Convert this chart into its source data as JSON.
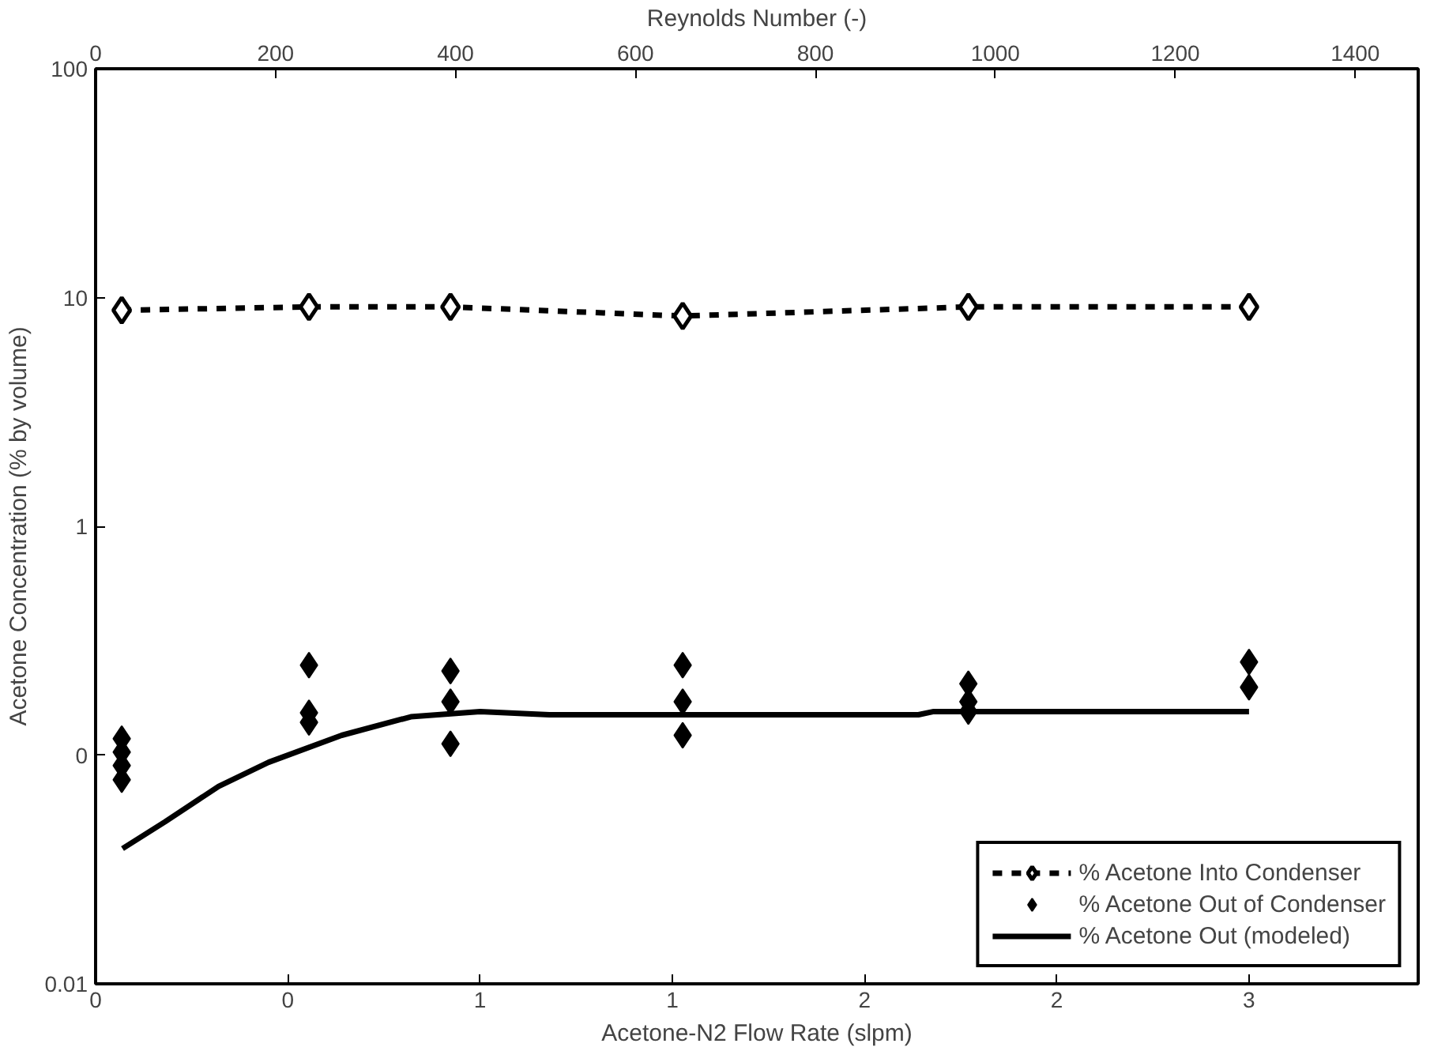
{
  "chart_data": {
    "type": "line",
    "xlabel": "Acetone-N2 Flow Rate (slpm)",
    "ylabel": "Acetone Concentration (% by volume)",
    "x2label": "Reynolds Number (-)",
    "xlim": [
      0,
      3.44
    ],
    "xticks": [
      0,
      {
        "value": 0.5,
        "label": "0"
      },
      1,
      {
        "value": 1.5,
        "label": "1"
      },
      2,
      {
        "value": 2.5,
        "label": "2"
      },
      3
    ],
    "x2lim": [
      0,
      1470
    ],
    "x2ticks": [
      0,
      200,
      400,
      600,
      800,
      1000,
      1200,
      1400
    ],
    "ylim": [
      0.01,
      100
    ],
    "yticks": [
      0.01,
      {
        "value": 0.1,
        "label": "0"
      },
      1,
      10,
      100
    ],
    "log": "y",
    "grid": false,
    "legend": "bottom right",
    "series": [
      {
        "name": "% Acetone Into Condenser",
        "marker": "diamond",
        "line_style": "dashed",
        "color": "#000000",
        "x": [
          0.068,
          0.555,
          0.923,
          1.527,
          2.27,
          3.0
        ],
        "values": [
          8.8,
          9.1,
          9.1,
          8.3,
          9.1,
          9.1
        ]
      },
      {
        "name": "% Acetone Out of Condenser",
        "type": "scatter",
        "marker": "diamond",
        "color": "#000000",
        "x": [
          0.068,
          0.068,
          0.068,
          0.068,
          0.555,
          0.555,
          0.555,
          0.923,
          0.923,
          0.923,
          1.527,
          1.527,
          1.527,
          2.27,
          2.27,
          2.27,
          3.0,
          3.0
        ],
        "values": [
          0.118,
          0.103,
          0.09,
          0.078,
          0.247,
          0.153,
          0.139,
          0.233,
          0.171,
          0.112,
          0.247,
          0.171,
          0.122,
          0.205,
          0.171,
          0.155,
          0.255,
          0.198
        ]
      },
      {
        "name": "% Acetone Out (modeled)",
        "marker": "none",
        "line_style": "solid",
        "color": "#000000",
        "x": [
          0.07,
          0.18,
          0.32,
          0.45,
          0.64,
          0.82,
          1.0,
          1.18,
          2.14,
          2.18,
          3.0
        ],
        "values": [
          0.039,
          0.051,
          0.073,
          0.093,
          0.122,
          0.147,
          0.155,
          0.15,
          0.15,
          0.155,
          0.155
        ]
      }
    ]
  }
}
